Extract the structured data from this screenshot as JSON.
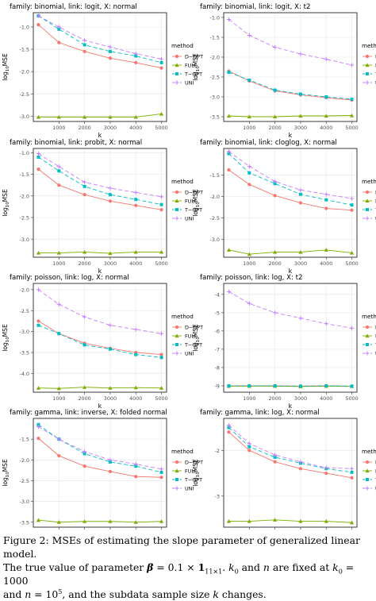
{
  "figure": {
    "x_axis_label": "k",
    "y_axis_label": "log",
    "y_axis_label_sub": "10",
    "y_axis_label_tail": "MSE",
    "legend_title": "method",
    "legend_labels": [
      "D−OPT",
      "FULL",
      "T−OPT",
      "UNI"
    ],
    "colors": {
      "D-OPT": "#f8766d",
      "FULL": "#7cae00",
      "T-OPT": "#00bfc4",
      "UNI": "#c77cff"
    }
  },
  "chart_data": [
    {
      "type": "line",
      "title": "family: binomial, link: logit, X: normal",
      "x": [
        200,
        1000,
        2000,
        3000,
        4000,
        5000
      ],
      "xticks": [
        "1000",
        "2000",
        "3000",
        "4000",
        "5000"
      ],
      "xtick_values": [
        1000,
        2000,
        3000,
        4000,
        5000
      ],
      "yticks": [
        "-1.0",
        "-1.5",
        "-2.0",
        "-2.5",
        "-3.0"
      ],
      "ytick_values": [
        -1.0,
        -1.5,
        -2.0,
        -2.5,
        -3.0
      ],
      "ylim": [
        -3.12,
        -0.68
      ],
      "series": [
        {
          "name": "D−OPT",
          "values": [
            -0.95,
            -1.35,
            -1.55,
            -1.7,
            -1.8,
            -1.92
          ]
        },
        {
          "name": "FULL",
          "values": [
            -3.02,
            -3.02,
            -3.02,
            -3.02,
            -3.02,
            -2.95
          ]
        },
        {
          "name": "T−OPT",
          "values": [
            -0.75,
            -1.05,
            -1.4,
            -1.55,
            -1.65,
            -1.8
          ]
        },
        {
          "name": "UNI",
          "values": [
            -0.75,
            -1.0,
            -1.3,
            -1.45,
            -1.6,
            -1.72
          ]
        }
      ]
    },
    {
      "type": "line",
      "title": "family: binomial, link: logit, X: t2",
      "x": [
        200,
        1000,
        2000,
        3000,
        4000,
        5000
      ],
      "xticks": [
        "1000",
        "2000",
        "3000",
        "4000",
        "5000"
      ],
      "xtick_values": [
        1000,
        2000,
        3000,
        4000,
        5000
      ],
      "yticks": [
        "-1.0",
        "-1.5",
        "-2.0",
        "-2.5",
        "-3.0",
        "-3.5"
      ],
      "ytick_values": [
        -1.0,
        -1.5,
        -2.0,
        -2.5,
        -3.0,
        -3.5
      ],
      "ylim": [
        -3.62,
        -0.88
      ],
      "series": [
        {
          "name": "D−OPT",
          "values": [
            -2.35,
            -2.6,
            -2.85,
            -2.95,
            -3.02,
            -3.08
          ]
        },
        {
          "name": "FULL",
          "values": [
            -3.48,
            -3.5,
            -3.5,
            -3.48,
            -3.48,
            -3.47
          ]
        },
        {
          "name": "T−OPT",
          "values": [
            -2.38,
            -2.58,
            -2.83,
            -2.93,
            -3.0,
            -3.06
          ]
        },
        {
          "name": "UNI",
          "values": [
            -1.05,
            -1.45,
            -1.75,
            -1.92,
            -2.05,
            -2.2
          ]
        }
      ]
    },
    {
      "type": "line",
      "title": "family: binomial, link: probit, X: normal",
      "x": [
        200,
        1000,
        2000,
        3000,
        4000,
        5000
      ],
      "xticks": [
        "1000",
        "2000",
        "3000",
        "4000",
        "5000"
      ],
      "xtick_values": [
        1000,
        2000,
        3000,
        4000,
        5000
      ],
      "yticks": [
        "-1.0",
        "-1.5",
        "-2.0",
        "-2.5",
        "-3.0"
      ],
      "ytick_values": [
        -1.0,
        -1.5,
        -2.0,
        -2.5,
        -3.0
      ],
      "ylim": [
        -3.42,
        -0.9
      ],
      "series": [
        {
          "name": "D−OPT",
          "values": [
            -1.38,
            -1.75,
            -1.97,
            -2.12,
            -2.22,
            -2.32
          ]
        },
        {
          "name": "FULL",
          "values": [
            -3.32,
            -3.32,
            -3.3,
            -3.33,
            -3.3,
            -3.3
          ]
        },
        {
          "name": "T−OPT",
          "values": [
            -1.1,
            -1.42,
            -1.78,
            -1.97,
            -2.08,
            -2.2
          ]
        },
        {
          "name": "UNI",
          "values": [
            -1.02,
            -1.32,
            -1.68,
            -1.82,
            -1.92,
            -2.02
          ]
        }
      ]
    },
    {
      "type": "line",
      "title": "family: binomial, link: cloglog, X: normal",
      "x": [
        200,
        1000,
        2000,
        3000,
        4000,
        5000
      ],
      "xticks": [
        "1000",
        "2000",
        "3000",
        "4000",
        "5000"
      ],
      "xtick_values": [
        1000,
        2000,
        3000,
        4000,
        5000
      ],
      "yticks": [
        "-1.5",
        "-2.0",
        "-2.5",
        "-3.0"
      ],
      "ytick_values": [
        -1.5,
        -2.0,
        -2.5,
        -3.0
      ],
      "ylim": [
        -3.42,
        -0.88
      ],
      "series": [
        {
          "name": "D−OPT",
          "values": [
            -1.38,
            -1.72,
            -1.98,
            -2.15,
            -2.28,
            -2.32
          ]
        },
        {
          "name": "FULL",
          "values": [
            -3.25,
            -3.35,
            -3.3,
            -3.3,
            -3.25,
            -3.32
          ]
        },
        {
          "name": "T−OPT",
          "values": [
            -1.0,
            -1.45,
            -1.7,
            -1.95,
            -2.08,
            -2.2
          ]
        },
        {
          "name": "UNI",
          "values": [
            -0.95,
            -1.3,
            -1.65,
            -1.85,
            -1.95,
            -2.05
          ]
        }
      ]
    },
    {
      "type": "line",
      "title": "family: poisson, link: log, X: normal",
      "x": [
        200,
        1000,
        2000,
        3000,
        4000,
        5000
      ],
      "xticks": [
        "1000",
        "2000",
        "3000",
        "4000",
        "5000"
      ],
      "xtick_values": [
        1000,
        2000,
        3000,
        4000,
        5000
      ],
      "yticks": [
        "-2.0",
        "-2.5",
        "-3.0",
        "-3.5",
        "-4.0"
      ],
      "ytick_values": [
        -2.0,
        -2.5,
        -3.0,
        -3.5,
        -4.0
      ],
      "ylim": [
        -4.45,
        -1.85
      ],
      "series": [
        {
          "name": "D−OPT",
          "values": [
            -2.75,
            -3.05,
            -3.28,
            -3.4,
            -3.5,
            -3.55
          ]
        },
        {
          "name": "FULL",
          "values": [
            -4.35,
            -4.36,
            -4.33,
            -4.35,
            -4.34,
            -4.35
          ]
        },
        {
          "name": "T−OPT",
          "values": [
            -2.85,
            -3.05,
            -3.32,
            -3.42,
            -3.55,
            -3.62
          ]
        },
        {
          "name": "UNI",
          "values": [
            -2.0,
            -2.35,
            -2.65,
            -2.85,
            -2.95,
            -3.05
          ]
        }
      ]
    },
    {
      "type": "line",
      "title": "family: poisson, link: log, X: t2",
      "x": [
        200,
        1000,
        2000,
        3000,
        4000,
        5000
      ],
      "xticks": [
        "1000",
        "2000",
        "3000",
        "4000",
        "5000"
      ],
      "xtick_values": [
        1000,
        2000,
        3000,
        4000,
        5000
      ],
      "yticks": [
        "-4",
        "-5",
        "-6",
        "-7",
        "-8",
        "-9"
      ],
      "ytick_values": [
        -4,
        -5,
        -6,
        -7,
        -8,
        -9
      ],
      "ylim": [
        -9.35,
        -3.4
      ],
      "series": [
        {
          "name": "D−OPT",
          "values": [
            -9.0,
            -9.0,
            -9.0,
            -9.02,
            -9.0,
            -9.02
          ]
        },
        {
          "name": "FULL",
          "values": [
            -9.02,
            -9.02,
            -9.02,
            -9.04,
            -9.02,
            -9.03
          ]
        },
        {
          "name": "T−OPT",
          "values": [
            -9.0,
            -9.0,
            -9.0,
            -9.02,
            -9.0,
            -9.02
          ]
        },
        {
          "name": "UNI",
          "values": [
            -3.85,
            -4.5,
            -5.0,
            -5.3,
            -5.6,
            -5.85
          ]
        }
      ]
    },
    {
      "type": "line",
      "title": "family: gamma, link: inverse, X: folded normal",
      "x": [
        200,
        1000,
        2000,
        3000,
        4000,
        5000
      ],
      "xticks": [
        "1000",
        "2000",
        "3000",
        "4000",
        "5000"
      ],
      "xtick_values": [
        1000,
        2000,
        3000,
        4000,
        5000
      ],
      "yticks": [
        "-1.5",
        "-2.0",
        "-2.5",
        "-3.0",
        "-3.5"
      ],
      "ytick_values": [
        -1.5,
        -2.0,
        -2.5,
        -3.0,
        -3.5
      ],
      "ylim": [
        -3.62,
        -1.0
      ],
      "series": [
        {
          "name": "D−OPT",
          "values": [
            -1.48,
            -1.9,
            -2.15,
            -2.28,
            -2.4,
            -2.42
          ]
        },
        {
          "name": "FULL",
          "values": [
            -3.45,
            -3.5,
            -3.48,
            -3.48,
            -3.5,
            -3.48
          ]
        },
        {
          "name": "T−OPT",
          "values": [
            -1.15,
            -1.5,
            -1.85,
            -2.05,
            -2.15,
            -2.3
          ]
        },
        {
          "name": "UNI",
          "values": [
            -1.2,
            -1.5,
            -1.8,
            -2.0,
            -2.1,
            -2.22
          ]
        }
      ]
    },
    {
      "type": "line",
      "title": "family: gamma, link: log, X: normal",
      "x": [
        200,
        1000,
        2000,
        3000,
        4000,
        5000
      ],
      "xticks": [
        "1000",
        "2000",
        "3000",
        "4000",
        "5000"
      ],
      "xtick_values": [
        1000,
        2000,
        3000,
        4000,
        5000
      ],
      "yticks": [
        "-2",
        "-3"
      ],
      "ytick_values": [
        -2,
        -3
      ],
      "ylim": [
        -3.68,
        -1.3
      ],
      "series": [
        {
          "name": "D−OPT",
          "values": [
            -1.6,
            -2.0,
            -2.25,
            -2.4,
            -2.5,
            -2.6
          ]
        },
        {
          "name": "FULL",
          "values": [
            -3.55,
            -3.55,
            -3.52,
            -3.55,
            -3.55,
            -3.58
          ]
        },
        {
          "name": "T−OPT",
          "values": [
            -1.5,
            -1.92,
            -2.15,
            -2.28,
            -2.4,
            -2.48
          ]
        },
        {
          "name": "UNI",
          "values": [
            -1.45,
            -1.85,
            -2.1,
            -2.25,
            -2.38,
            -2.4
          ]
        }
      ]
    }
  ],
  "caption": {
    "fig_label": "Figure 2:",
    "line1_rest": " MSEs of estimating the slope parameter of generalized linear model.",
    "line2_a": "The true value of parameter ",
    "beta": "β",
    "line2_b": " = 0.1 × ",
    "one": "1",
    "one_sub": "11×1",
    "line2_c": ". ",
    "k0": "k",
    "k0_sub": "0",
    "line2_d": " and ",
    "n": "n",
    "line2_e": " are fixed at ",
    "k0b": "k",
    "k0b_sub": "0",
    "line2_f": " = 1000",
    "line3_a": "and ",
    "n2": "n",
    "line3_b": " = 10",
    "exp": "5",
    "line3_c": ", and the subdata sample size ",
    "k": "k",
    "line3_d": " changes."
  }
}
